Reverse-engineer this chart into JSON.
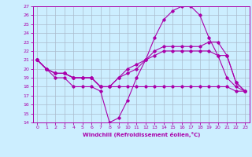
{
  "title": "",
  "xlabel": "Windchill (Refroidissement éolien,°C)",
  "xlim": [
    -0.5,
    23.5
  ],
  "ylim": [
    14,
    27
  ],
  "xticks": [
    0,
    1,
    2,
    3,
    4,
    5,
    6,
    7,
    8,
    9,
    10,
    11,
    12,
    13,
    14,
    15,
    16,
    17,
    18,
    19,
    20,
    21,
    22,
    23
  ],
  "yticks": [
    14,
    15,
    16,
    17,
    18,
    19,
    20,
    21,
    22,
    23,
    24,
    25,
    26,
    27
  ],
  "background_color": "#cceeff",
  "grid_color": "#aabbcc",
  "line_color": "#aa00aa",
  "lines": [
    {
      "x": [
        0,
        1,
        2,
        3,
        4,
        5,
        6,
        7,
        8,
        9,
        10,
        11,
        12,
        13,
        14,
        15,
        16,
        17,
        18,
        19,
        20,
        21,
        22,
        23
      ],
      "y": [
        21,
        20,
        19,
        19,
        18,
        18,
        18,
        17.5,
        14,
        14.5,
        16.5,
        19,
        21,
        23.5,
        25.5,
        26.5,
        27,
        27,
        26,
        23.5,
        21.5,
        19,
        18,
        17.5
      ]
    },
    {
      "x": [
        0,
        1,
        2,
        3,
        4,
        5,
        6,
        7,
        8,
        9,
        10,
        11,
        12,
        13,
        14,
        15,
        16,
        17,
        18,
        19,
        20,
        21,
        22,
        23
      ],
      "y": [
        21,
        20,
        19.5,
        19.5,
        19,
        19,
        19,
        18,
        18,
        18,
        18,
        18,
        18,
        18,
        18,
        18,
        18,
        18,
        18,
        18,
        18,
        18,
        17.5,
        17.5
      ]
    },
    {
      "x": [
        0,
        1,
        2,
        3,
        4,
        5,
        6,
        7,
        8,
        9,
        10,
        11,
        12,
        13,
        14,
        15,
        16,
        17,
        18,
        19,
        20,
        21,
        22,
        23
      ],
      "y": [
        21,
        20,
        19.5,
        19.5,
        19,
        19,
        19,
        18,
        18,
        19,
        19.5,
        20,
        21,
        22,
        22.5,
        22.5,
        22.5,
        22.5,
        22.5,
        23,
        23,
        21.5,
        18.5,
        17.5
      ]
    },
    {
      "x": [
        0,
        1,
        2,
        3,
        4,
        5,
        6,
        7,
        8,
        9,
        10,
        11,
        12,
        13,
        14,
        15,
        16,
        17,
        18,
        19,
        20,
        21,
        22,
        23
      ],
      "y": [
        21,
        20,
        19.5,
        19.5,
        19,
        19,
        19,
        18,
        18,
        19,
        20,
        20.5,
        21,
        21.5,
        22,
        22,
        22,
        22,
        22,
        22,
        21.5,
        21.5,
        18.5,
        17.5
      ]
    }
  ]
}
